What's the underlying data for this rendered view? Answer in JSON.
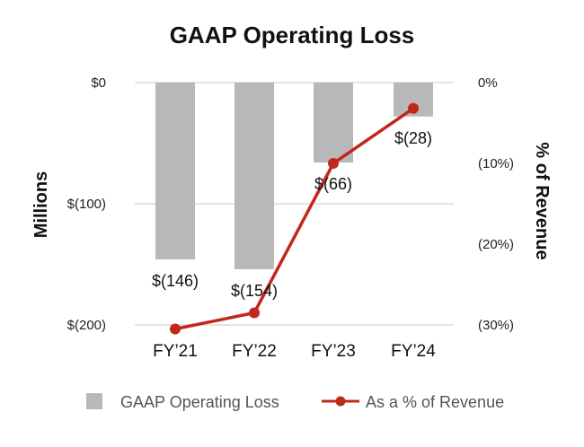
{
  "chart_data": {
    "type": "bar",
    "title": "GAAP Operating Loss",
    "categories": [
      "FY’21",
      "FY’22",
      "FY’23",
      "FY’24"
    ],
    "series": [
      {
        "name": "GAAP Operating Loss",
        "type": "bar",
        "axis": "left",
        "color": "#b8b8b8",
        "values": [
          -146,
          -154,
          -66,
          -28
        ],
        "labels": [
          "$(146)",
          "$(154)",
          "$(66)",
          "$(28)"
        ]
      },
      {
        "name": "As a % of Revenue",
        "type": "line",
        "axis": "right",
        "color": "#c0281c",
        "values": [
          -30.5,
          -28.5,
          -10.0,
          -3.2
        ]
      }
    ],
    "ylabel": "Millions",
    "ylim": [
      -200,
      0
    ],
    "yticks": [
      0,
      -100,
      -200
    ],
    "ytick_labels": [
      "$0",
      "$(100)",
      "$(200)"
    ],
    "y2label": "% of Revenue",
    "y2lim": [
      -30,
      0
    ],
    "y2ticks": [
      0,
      -10,
      -20,
      -30
    ],
    "y2tick_labels": [
      "0%",
      "(10%)",
      "(20%)",
      "(30%)"
    ],
    "grid": true,
    "legend": "bottom"
  }
}
